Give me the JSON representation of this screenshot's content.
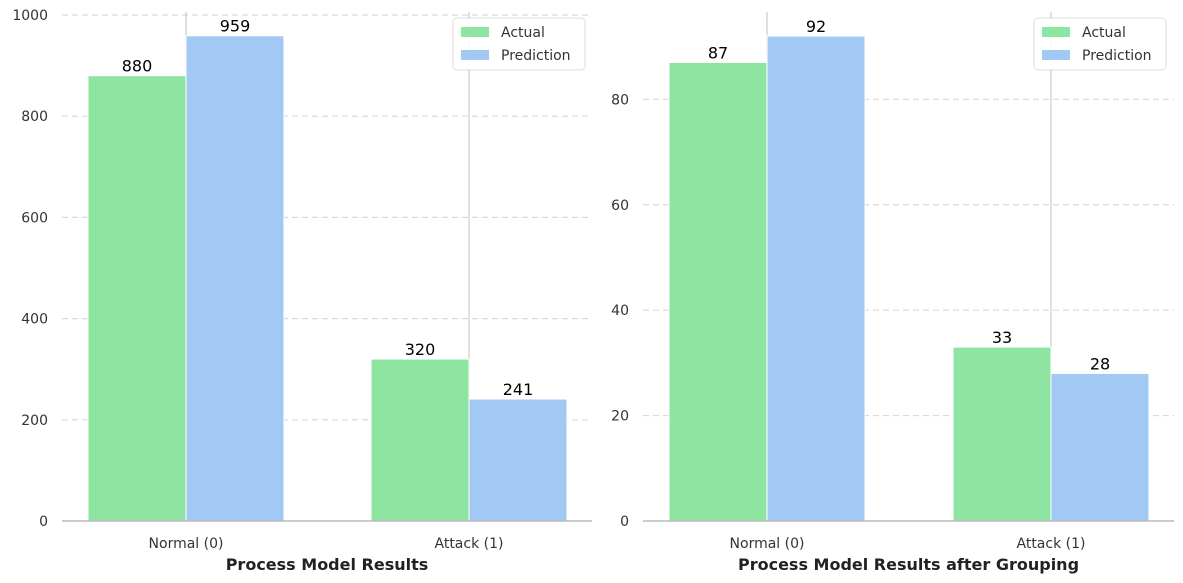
{
  "chart_data": [
    {
      "type": "bar",
      "title": "",
      "xlabel": "Process Model Results",
      "ylabel": "",
      "categories": [
        "Normal (0)",
        "Attack (1)"
      ],
      "series": [
        {
          "name": "Actual",
          "values": [
            880,
            320
          ],
          "color": "#8de5a1"
        },
        {
          "name": "Prediction",
          "values": [
            959,
            241
          ],
          "color": "#a1c9f4"
        }
      ],
      "ylim": [
        0,
        1000
      ],
      "yticks": [
        0,
        200,
        400,
        600,
        800,
        1000
      ],
      "grid": "y-dashed",
      "legend_position": "top-right"
    },
    {
      "type": "bar",
      "title": "",
      "xlabel": "Process Model Results after Grouping",
      "ylabel": "",
      "categories": [
        "Normal (0)",
        "Attack (1)"
      ],
      "series": [
        {
          "name": "Actual",
          "values": [
            87,
            33
          ],
          "color": "#8de5a1"
        },
        {
          "name": "Prediction",
          "values": [
            92,
            28
          ],
          "color": "#a1c9f4"
        }
      ],
      "ylim": [
        0,
        96
      ],
      "yticks": [
        0,
        20,
        40,
        60,
        80
      ],
      "grid": "y-dashed",
      "legend_position": "top-right"
    }
  ]
}
